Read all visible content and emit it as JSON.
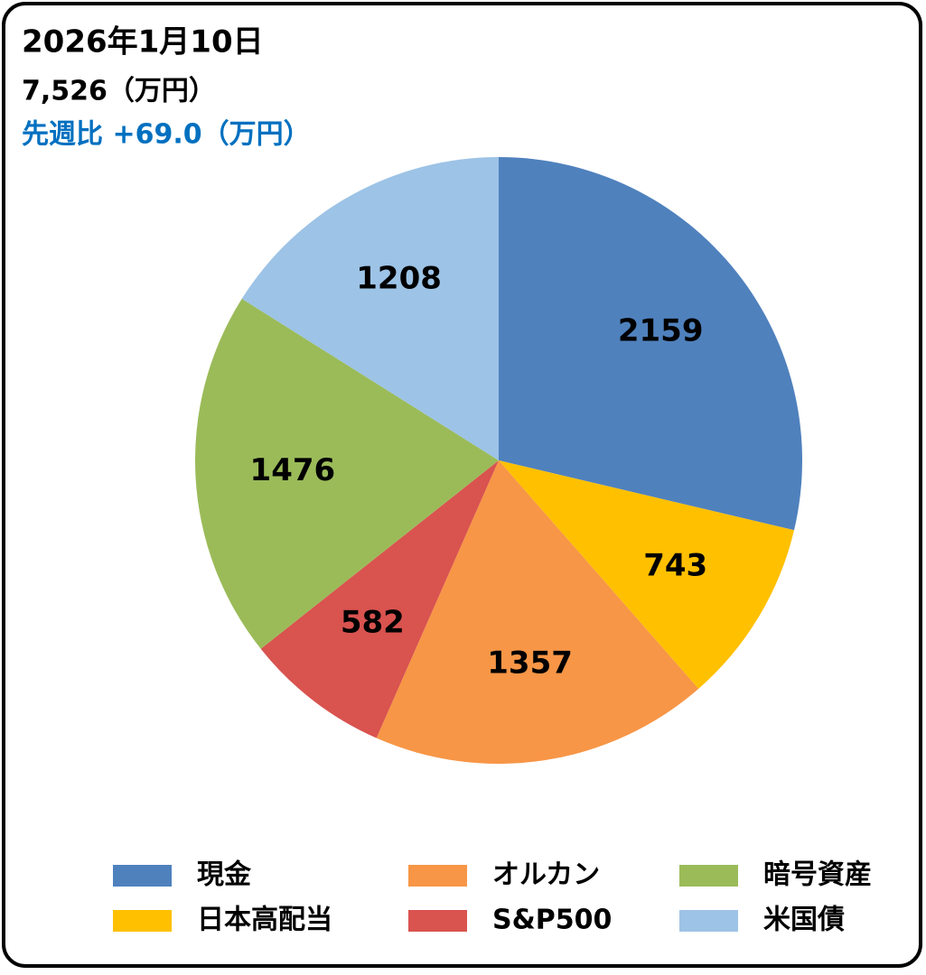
{
  "chart_data": {
    "type": "pie",
    "title": "2026年1月10日",
    "subtitle": "7,526（万円）",
    "change": "先週比 +69.0（万円）",
    "categories": [
      "現金",
      "日本高配当",
      "オルカン",
      "S&P500",
      "暗号資産",
      "米国債"
    ],
    "values": [
      2159,
      743,
      1357,
      582,
      1476,
      1208
    ],
    "colors": [
      "#4f81bd",
      "#ffc000",
      "#f79646",
      "#d9534f",
      "#9bbb59",
      "#9dc3e6"
    ],
    "legend": "bottom"
  }
}
